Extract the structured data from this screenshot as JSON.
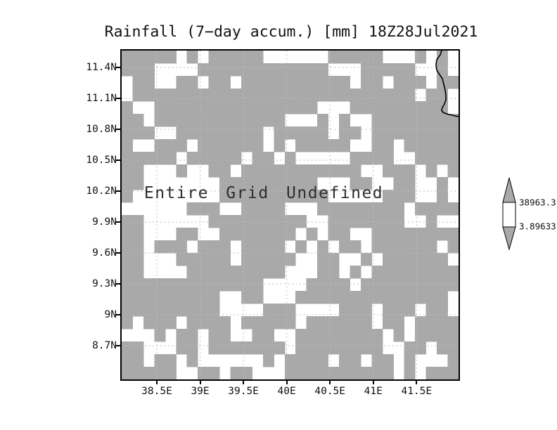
{
  "title": "Rainfall (7−day accum.) [mm] 18Z28Jul2021",
  "map": {
    "message": "Entire Grid Undefined",
    "y_axis_labels": [
      "11.4N",
      "11.1N",
      "10.8N",
      "10.5N",
      "10.2N",
      "9.9N",
      "9.6N",
      "9.3N",
      "9N",
      "8.7N"
    ],
    "x_axis_labels": [
      "38.5E",
      "39E",
      "39.5E",
      "40E",
      "40.5E",
      "41E",
      "41.5E"
    ],
    "grid_pattern": [
      "1111101011111000000111110001010",
      "1110000111111111111000111110010",
      "0110011011011111111110110111011",
      "0111111111111111111111111110110",
      "1001111111111111110001111111110",
      "1101111111111110001010011111111",
      "1110011111111011111011011111111",
      "1001110111111010111110011011111",
      "1111101111101101000001111001111",
      "1100010011011111111111001110101",
      "1100000001111111110001100110010",
      "1000000001111111111000001110010",
      "0000001110011110001111111101111",
      "1100000011111111100111111100100",
      "1100011001111111010110011111111",
      "1101110111011110101011011111101",
      "1100011111011111001100101111110",
      "1100001111111110001101011111111",
      "1111111111111000011110111111111",
      "1111111110011000111111111111110",
      "1111111110000111000011101110110",
      "1011101111011111011111101101111",
      "0001011011001100111111110101111",
      "1100011011111110111111110011011",
      "1101101000000101111011011010001",
      "1111100110110001111111111010111"
    ],
    "colors": {
      "undefined_cell": "#a9a9a9",
      "gridline": "#bdbdbd",
      "border": "#000000",
      "coastline": "#000000"
    }
  },
  "colorbar": {
    "max_label": "38963.3",
    "min_label": "3.89633",
    "arrow_color": "#a9a9a9",
    "box_color": "#ffffff"
  },
  "chart_data": {
    "type": "heatmap",
    "title": "Rainfall (7−day accum.) [mm] 18Z28Jul2021",
    "x_tick_labels": [
      "38.5E",
      "39E",
      "39.5E",
      "40E",
      "40.5E",
      "41E",
      "41.5E"
    ],
    "y_tick_labels": [
      "8.7N",
      "9N",
      "9.3N",
      "9.6N",
      "9.9N",
      "10.2N",
      "10.5N",
      "10.8N",
      "11.1N",
      "11.4N"
    ],
    "values": "all grid values undefined; gray blocks indicate missing data cells",
    "annotation": "Entire Grid Undefined",
    "colorbar_levels": [
      3.89633,
      38963.3
    ],
    "grid_on": true,
    "legend_position": "right"
  }
}
